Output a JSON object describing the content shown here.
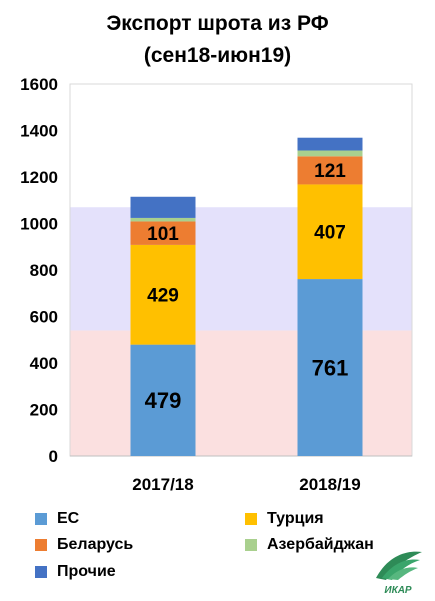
{
  "chart_data": {
    "type": "bar",
    "stacked": true,
    "title": "Экспорт шрота из РФ",
    "subtitle": "(сен18-июн19)",
    "categories": [
      "2017/18",
      "2018/19"
    ],
    "ylim": [
      0,
      1600
    ],
    "y_ticks": [
      0,
      200,
      400,
      600,
      800,
      1000,
      1200,
      1400,
      1600
    ],
    "grid": false,
    "legend_position": "bottom",
    "background_bands": [
      {
        "from": 0,
        "to": 540,
        "color": "#fbe0e0"
      },
      {
        "from": 540,
        "to": 1070,
        "color": "#e4e1fb"
      }
    ],
    "series": [
      {
        "name": "ЕС",
        "color": "#5b9bd5",
        "values": [
          479,
          761
        ],
        "labels": [
          "479",
          "761"
        ],
        "label_size": "large"
      },
      {
        "name": "Турция",
        "color": "#ffc000",
        "values": [
          429,
          407
        ],
        "labels": [
          "429",
          "407"
        ],
        "label_size": "medium"
      },
      {
        "name": "Беларусь",
        "color": "#ed7d31",
        "values": [
          101,
          121
        ],
        "labels": [
          "101",
          "121"
        ],
        "label_size": "medium"
      },
      {
        "name": "Азербайджан",
        "color": "#a9d08e",
        "values": [
          15,
          25
        ],
        "labels": null
      },
      {
        "name": "Прочие",
        "color": "#4472c4",
        "values": [
          91,
          55
        ],
        "labels": null
      }
    ]
  },
  "logo": {
    "text": "ИКАР",
    "color": "#2e8b57"
  }
}
